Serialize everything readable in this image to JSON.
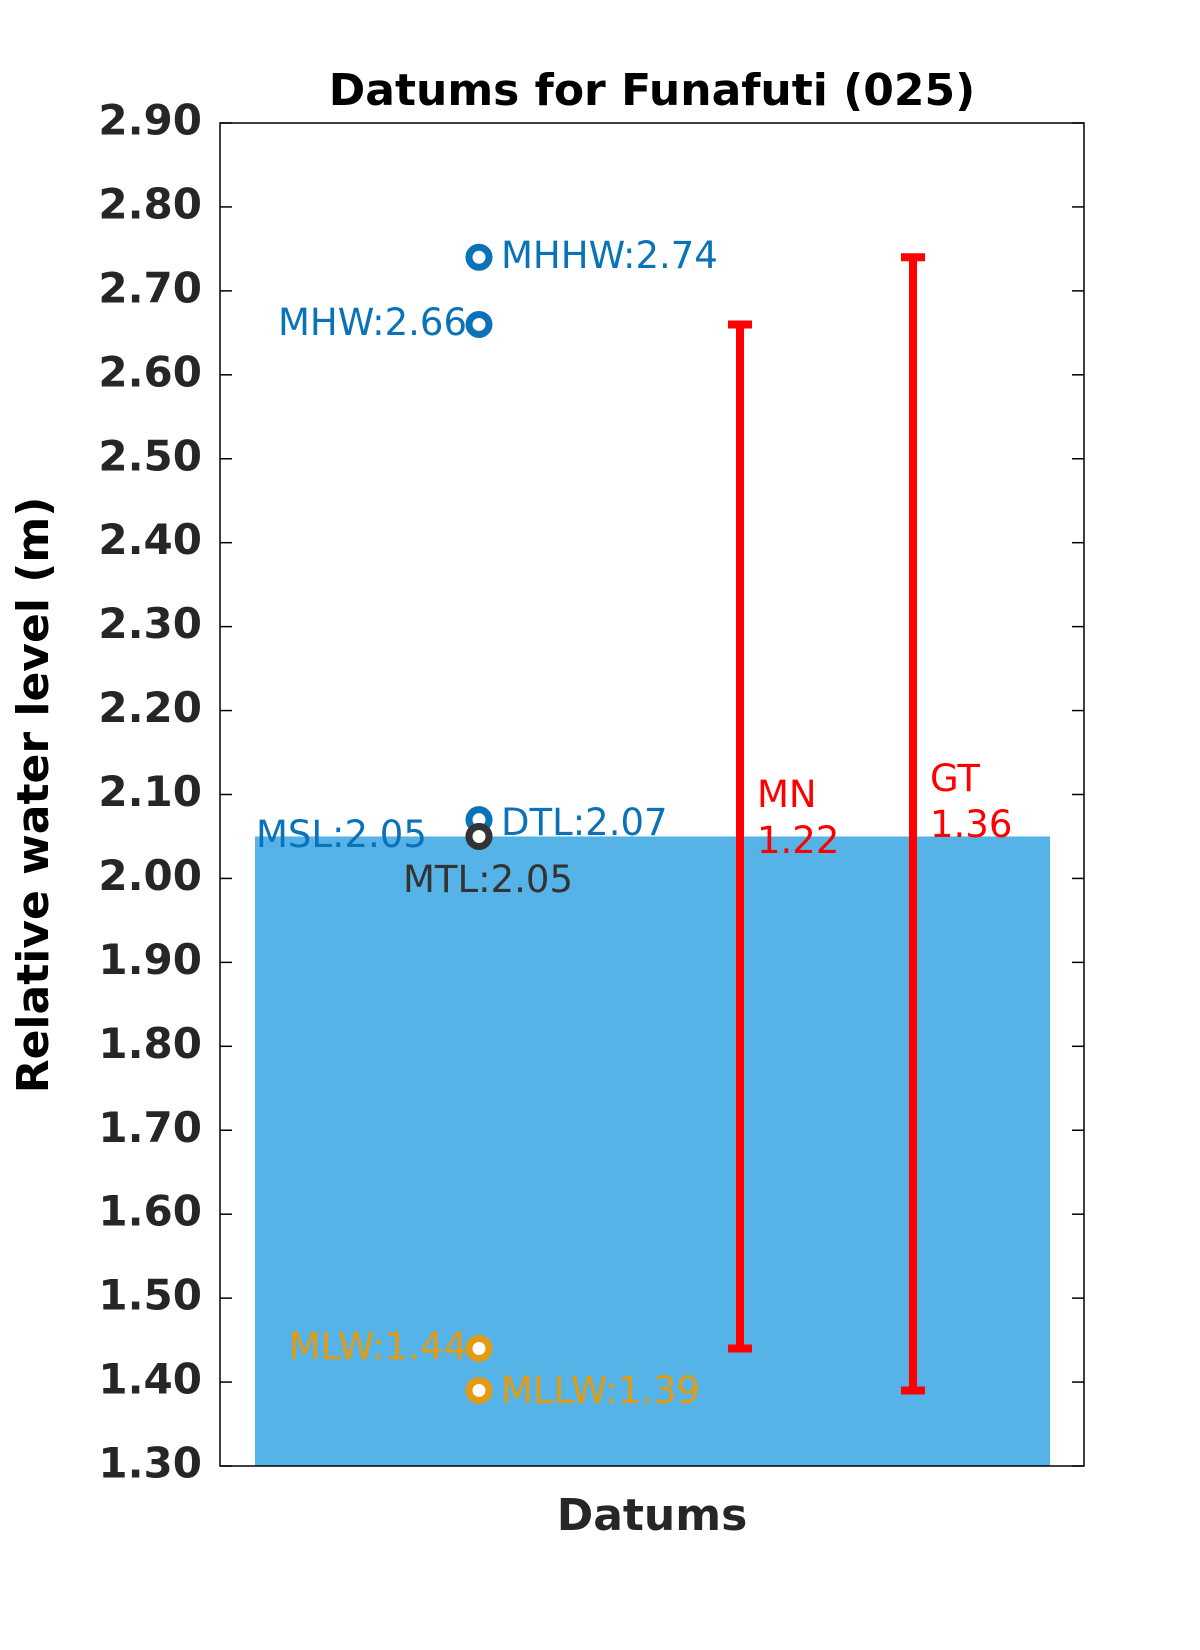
{
  "chart_data": {
    "type": "scatter",
    "title": "Datums for Funafuti (025)",
    "ylabel": "Relative water level (m)",
    "xlabel": "Datums",
    "ylim": [
      1.3,
      2.9
    ],
    "yticks": [
      {
        "value": 1.3,
        "label": "1.30"
      },
      {
        "value": 1.4,
        "label": "1.40"
      },
      {
        "value": 1.5,
        "label": "1.50"
      },
      {
        "value": 1.6,
        "label": "1.60"
      },
      {
        "value": 1.7,
        "label": "1.70"
      },
      {
        "value": 1.8,
        "label": "1.80"
      },
      {
        "value": 1.9,
        "label": "1.90"
      },
      {
        "value": 2.0,
        "label": "2.00"
      },
      {
        "value": 2.1,
        "label": "2.10"
      },
      {
        "value": 2.2,
        "label": "2.20"
      },
      {
        "value": 2.3,
        "label": "2.30"
      },
      {
        "value": 2.4,
        "label": "2.40"
      },
      {
        "value": 2.5,
        "label": "2.50"
      },
      {
        "value": 2.6,
        "label": "2.60"
      },
      {
        "value": 2.7,
        "label": "2.70"
      },
      {
        "value": 2.8,
        "label": "2.80"
      },
      {
        "value": 2.9,
        "label": "2.90"
      }
    ],
    "bar": {
      "name": "MSL",
      "value": 2.05,
      "color": "#56b3e7"
    },
    "points": [
      {
        "value": 2.74,
        "value_label": "MHHW:2.74",
        "color": "#0a72b8"
      },
      {
        "value": 2.66,
        "value_label": "MHW:2.66",
        "color": "#0a72b8"
      },
      {
        "value": 2.07,
        "value_label": "DTL:2.07",
        "color": "#0a72b8"
      },
      {
        "value": 2.05,
        "value_label": "MSL:2.05",
        "color": "#0a72b8"
      },
      {
        "value": 2.05,
        "value_label": "MTL:2.05",
        "color": "#333333"
      },
      {
        "value": 1.44,
        "value_label": "MLW:1.44",
        "color": "#e39c12"
      },
      {
        "value": 1.39,
        "value_label": "MLLW:1.39",
        "color": "#e39c12"
      }
    ],
    "ranges": [
      {
        "name": "MN",
        "value": 1.22,
        "low": 1.44,
        "high": 2.66,
        "color": "#ff0000"
      },
      {
        "name": "GT",
        "value": 1.36,
        "low": 1.39,
        "high": 2.74,
        "color": "#ff0000"
      }
    ]
  }
}
